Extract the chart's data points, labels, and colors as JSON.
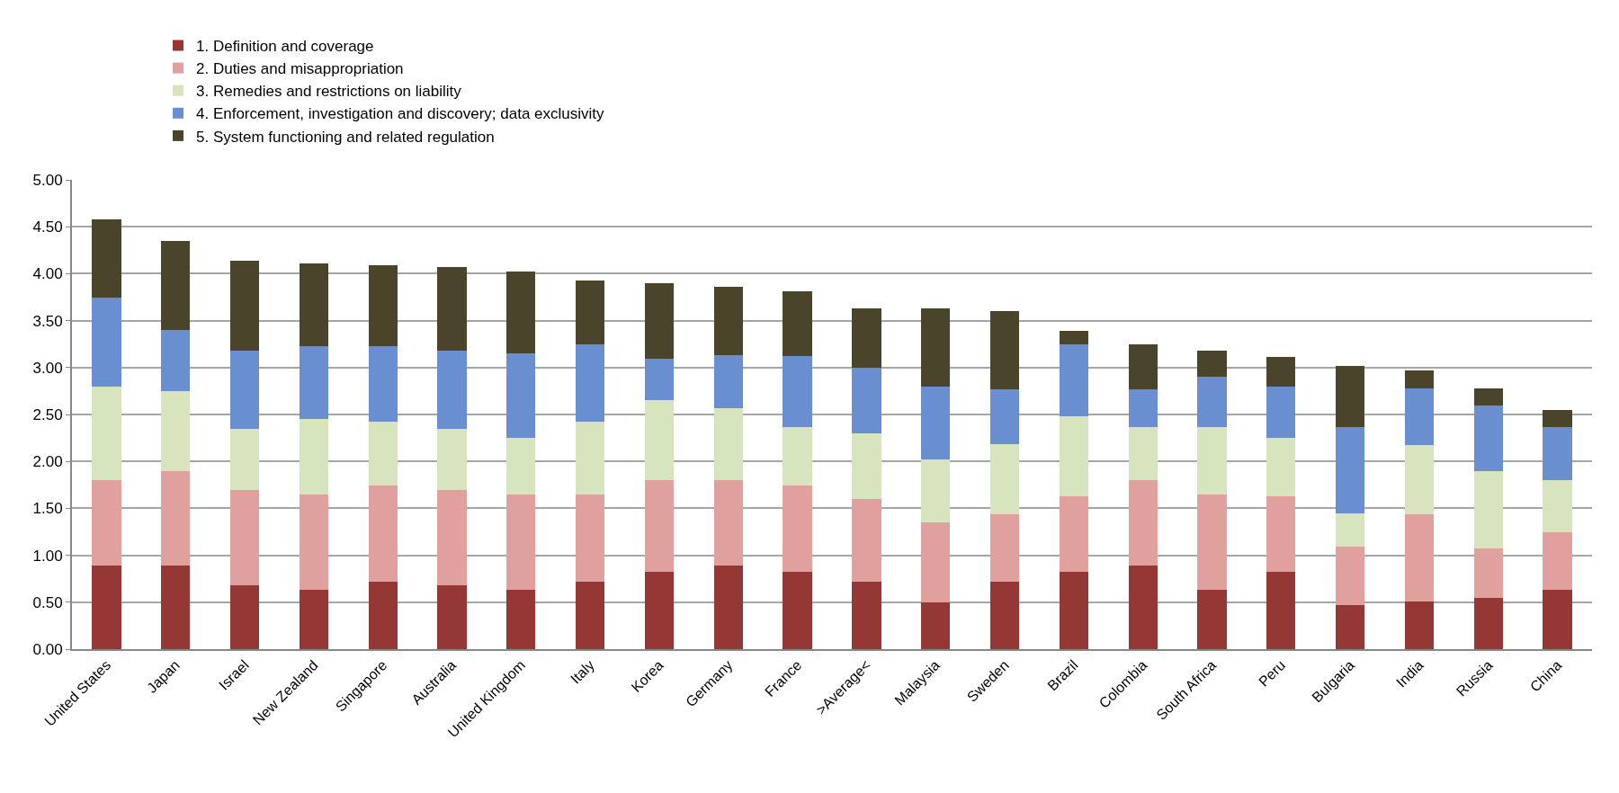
{
  "chart_data": {
    "type": "bar",
    "stacked": true,
    "legend": "top",
    "grid": "y",
    "categories": [
      "United States",
      "Japan",
      "Israel",
      "New Zealand",
      "Singapore",
      "Australia",
      "United Kingdom",
      "Italy",
      "Korea",
      "Germany",
      "France",
      ">Average<",
      "Malaysia",
      "Sweden",
      "Brazil",
      "Colombia",
      "South Africa",
      "Peru",
      "Bulgaria",
      "India",
      "Russia",
      "China"
    ],
    "ylim": [
      0,
      5
    ],
    "yticks": [
      {
        "value": 0,
        "label": "0.00"
      },
      {
        "value": 0.5,
        "label": "0.50"
      },
      {
        "value": 1,
        "label": "1.00"
      },
      {
        "value": 1.5,
        "label": "1.50"
      },
      {
        "value": 2,
        "label": "2.00"
      },
      {
        "value": 2.5,
        "label": "2.50"
      },
      {
        "value": 3,
        "label": "3.00"
      },
      {
        "value": 3.5,
        "label": "3.50"
      },
      {
        "value": 4,
        "label": "4.00"
      },
      {
        "value": 4.5,
        "label": "4.50"
      },
      {
        "value": 5,
        "label": "5.00"
      }
    ],
    "series": [
      {
        "name": "1. Definition and coverage",
        "color": "#953735",
        "values": [
          0.89,
          0.89,
          0.68,
          0.63,
          0.72,
          0.68,
          0.63,
          0.72,
          0.82,
          0.89,
          0.82,
          0.72,
          0.5,
          0.72,
          0.82,
          0.89,
          0.63,
          0.82,
          0.47,
          0.51,
          0.55,
          0.63
        ]
      },
      {
        "name": "2. Duties and misappropriation",
        "color": "#e0a09e",
        "values": [
          0.91,
          1.01,
          1.02,
          1.02,
          1.02,
          1.02,
          1.02,
          0.93,
          0.98,
          0.91,
          0.92,
          0.88,
          0.85,
          0.72,
          0.81,
          0.91,
          1.02,
          0.81,
          0.62,
          0.93,
          0.52,
          0.62
        ]
      },
      {
        "name": "3. Remedies and restrictions on liability",
        "color": "#d7e4bd",
        "values": [
          1.0,
          0.85,
          0.65,
          0.8,
          0.68,
          0.65,
          0.6,
          0.77,
          0.85,
          0.77,
          0.63,
          0.7,
          0.67,
          0.74,
          0.85,
          0.57,
          0.72,
          0.62,
          0.36,
          0.73,
          0.83,
          0.55
        ]
      },
      {
        "name": "4. Enforcement, investigation and discovery; data exclusivity",
        "color": "#6a8fd0",
        "values": [
          0.95,
          0.65,
          0.83,
          0.78,
          0.81,
          0.83,
          0.9,
          0.83,
          0.44,
          0.56,
          0.75,
          0.7,
          0.78,
          0.59,
          0.77,
          0.4,
          0.53,
          0.55,
          0.92,
          0.61,
          0.7,
          0.57
        ]
      },
      {
        "name": "5. System functioning and related regulation",
        "color": "#4a452a",
        "values": [
          0.83,
          0.95,
          0.96,
          0.88,
          0.86,
          0.89,
          0.87,
          0.68,
          0.81,
          0.73,
          0.69,
          0.63,
          0.83,
          0.83,
          0.14,
          0.48,
          0.28,
          0.31,
          0.65,
          0.19,
          0.18,
          0.18
        ]
      }
    ]
  }
}
